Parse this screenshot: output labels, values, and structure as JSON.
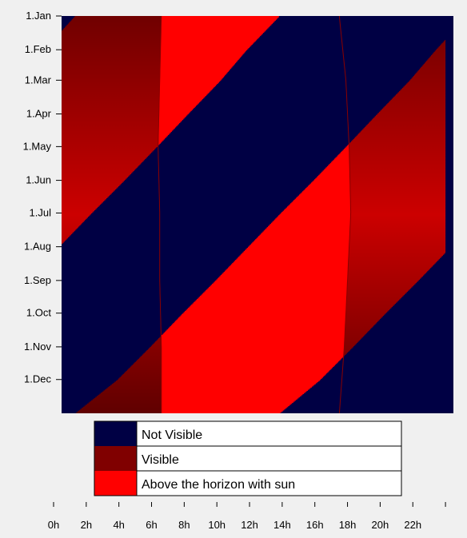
{
  "chart_data": {
    "type": "heatmap",
    "title": "",
    "xlabel": "",
    "ylabel": "",
    "x_axis": {
      "unit": "hour of day",
      "range": [
        0,
        24
      ],
      "tick_values": [
        0,
        2,
        4,
        6,
        8,
        10,
        12,
        14,
        16,
        18,
        20,
        22,
        24
      ],
      "tick_labels": [
        "0h",
        "2h",
        "4h",
        "6h",
        "8h",
        "10h",
        "12h",
        "14h",
        "16h",
        "18h",
        "20h",
        "22h",
        ""
      ]
    },
    "y_axis": {
      "unit": "date",
      "direction": "downward",
      "tick_labels": [
        "1.Jan",
        "1.Feb",
        "1.Mar",
        "1.Apr",
        "1.May",
        "1.Jun",
        "1.Jul",
        "1.Aug",
        "1.Sep",
        "1.Oct",
        "1.Nov",
        "1.Dec"
      ],
      "tick_day_of_year": [
        0,
        31,
        59,
        90,
        120,
        151,
        181,
        212,
        243,
        273,
        304,
        334
      ],
      "year_days": 365
    },
    "categories": [
      "Not Visible",
      "Visible",
      "Above the horizon with sun"
    ],
    "colors": {
      "not_visible": "#000044",
      "visible_bright": "#cc0000",
      "visible_dark": "#600000",
      "above_horizon_with_sun": "#ff0000",
      "boundary_line": "#8a0000"
    },
    "object_above_horizon": {
      "description_of_rows": "hour interval during which the object is above the horizon, sampled at the given dates",
      "samples": [
        {
          "day": 0,
          "rise_h": 1.3,
          "set_h": 13.8
        },
        {
          "day": 31,
          "rise_h": 23.4,
          "set_h": 11.8
        },
        {
          "day": 59,
          "rise_h": 21.8,
          "set_h": 10.2
        },
        {
          "day": 90,
          "rise_h": 19.8,
          "set_h": 8.2
        },
        {
          "day": 120,
          "rise_h": 17.9,
          "set_h": 6.3
        },
        {
          "day": 151,
          "rise_h": 15.9,
          "set_h": 4.3
        },
        {
          "day": 181,
          "rise_h": 13.9,
          "set_h": 2.3
        },
        {
          "day": 212,
          "rise_h": 11.9,
          "set_h": 0.3
        },
        {
          "day": 243,
          "rise_h": 9.9,
          "set_h": 22.3
        },
        {
          "day": 273,
          "rise_h": 7.9,
          "set_h": 20.3
        },
        {
          "day": 304,
          "rise_h": 5.9,
          "set_h": 18.3
        },
        {
          "day": 334,
          "rise_h": 3.9,
          "set_h": 16.3
        },
        {
          "day": 365,
          "rise_h": 1.3,
          "set_h": 13.8
        }
      ]
    },
    "sun_above_horizon": {
      "samples": [
        {
          "day": 0,
          "sunrise_h": 6.6,
          "sunset_h": 17.5
        },
        {
          "day": 59,
          "sunrise_h": 6.5,
          "sunset_h": 17.9
        },
        {
          "day": 120,
          "sunrise_h": 6.4,
          "sunset_h": 18.1
        },
        {
          "day": 181,
          "sunrise_h": 6.5,
          "sunset_h": 18.2
        },
        {
          "day": 243,
          "sunrise_h": 6.5,
          "sunset_h": 18.0
        },
        {
          "day": 304,
          "sunrise_h": 6.6,
          "sunset_h": 17.8
        },
        {
          "day": 365,
          "sunrise_h": 6.6,
          "sunset_h": 17.5
        }
      ]
    },
    "legend": {
      "position": "bottom",
      "entries": [
        {
          "label": "Not Visible",
          "color": "#000044"
        },
        {
          "label": "Visible",
          "color": "#800000"
        },
        {
          "label": "Above the horizon with sun",
          "color": "#ff0000"
        }
      ]
    }
  }
}
